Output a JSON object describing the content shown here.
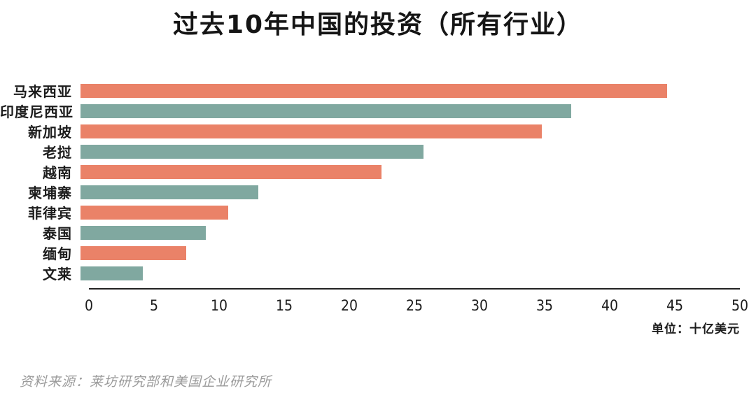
{
  "title": "过去10年中国的投资（所有行业）",
  "unit_label": "单位：十亿美元",
  "source": "资料来源：莱坊研究部和美国企业研究所",
  "colors": {
    "bar_orange": "#EA8268",
    "bar_teal": "#80A8A0",
    "axis_line": "#222222",
    "text": "#1c1c1c",
    "source_text": "#9b9b9b",
    "background": "#ffffff"
  },
  "chart_data": {
    "type": "bar",
    "orientation": "horizontal",
    "title": "过去10年中国的投资（所有行业）",
    "categories": [
      "马来西亚",
      "印度尼西亚",
      "新加坡",
      "老挝",
      "越南",
      "柬埔寨",
      "菲律宾",
      "泰国",
      "缅甸",
      "文莱"
    ],
    "values": [
      44.5,
      37.2,
      35,
      26,
      22.8,
      13.5,
      11.2,
      9.5,
      8,
      4.7
    ],
    "bar_colors_alternating": [
      "#EA8268",
      "#80A8A0"
    ],
    "xlabel": "单位：十亿美元",
    "xlim": [
      0,
      50
    ],
    "xticks": [
      0,
      5,
      10,
      15,
      20,
      25,
      30,
      35,
      40,
      45,
      50
    ],
    "grid": false,
    "legend": false
  }
}
